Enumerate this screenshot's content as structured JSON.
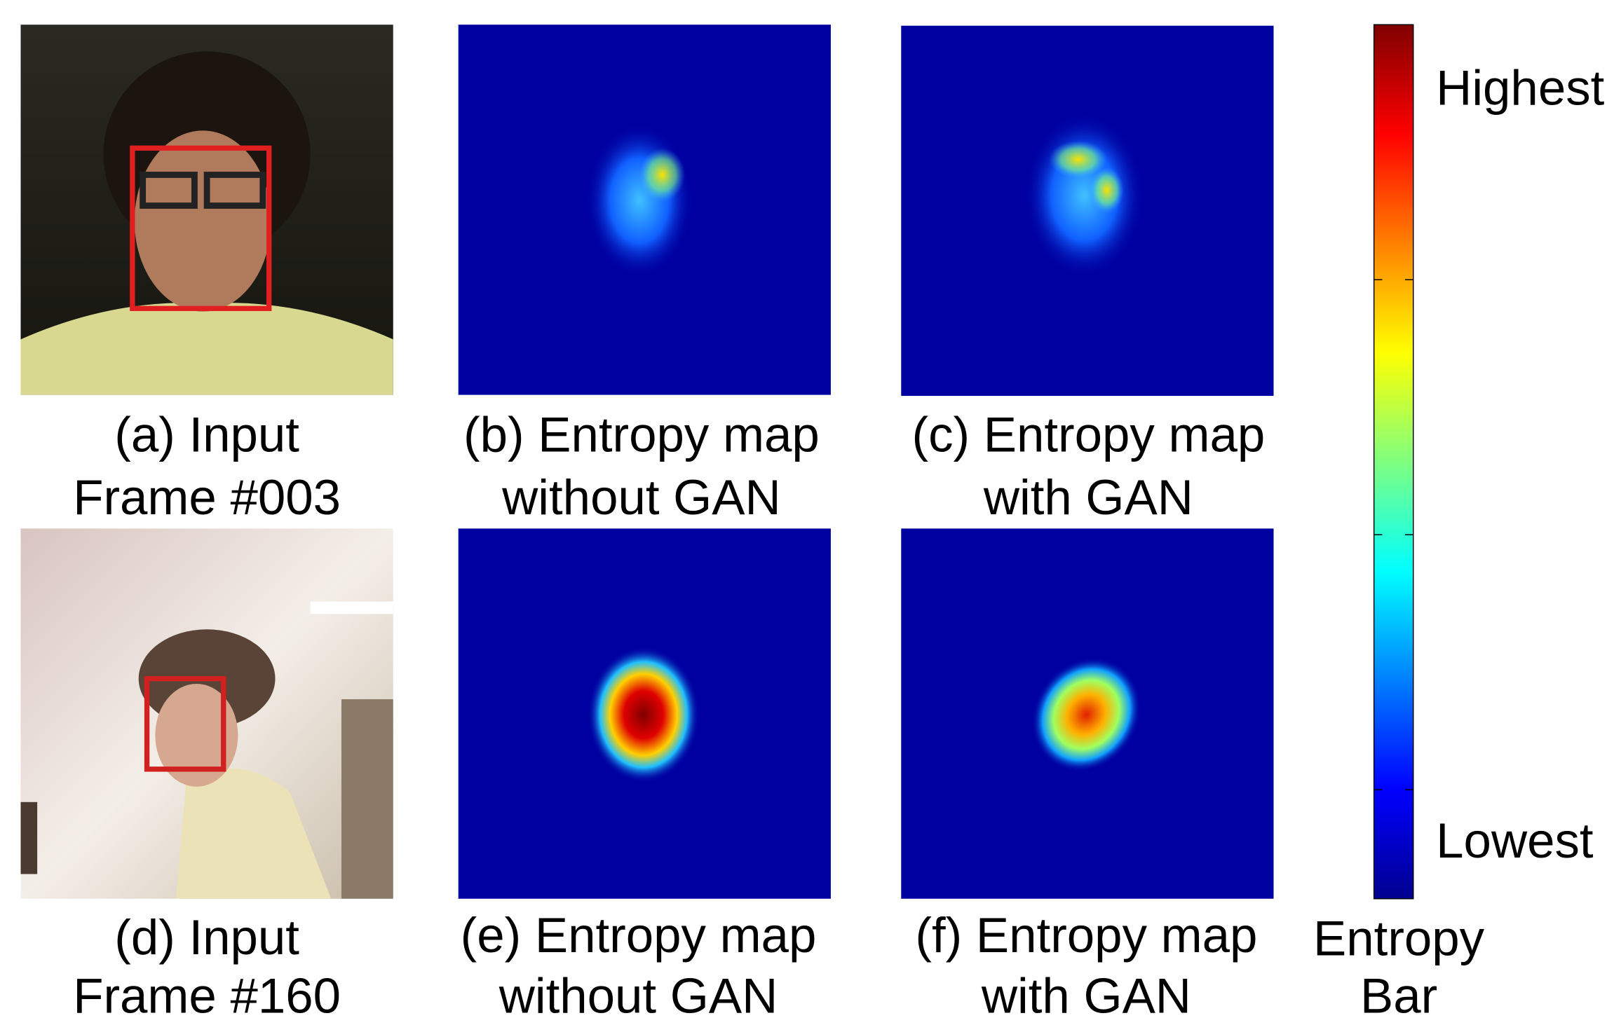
{
  "panels": [
    {
      "caption": [
        "(a)  Input",
        "Frame #003"
      ]
    },
    {
      "caption": [
        "(b) Entropy map",
        "without GAN"
      ]
    },
    {
      "caption": [
        "(c) Entropy map",
        "with GAN"
      ]
    },
    {
      "caption": [
        "(d) Input",
        "Frame #160"
      ]
    },
    {
      "caption": [
        "(e) Entropy map",
        "without GAN"
      ]
    },
    {
      "caption": [
        "(f) Entropy map",
        "with GAN"
      ]
    }
  ],
  "colorbar": {
    "high_label": "Highest",
    "low_label": "Lowest",
    "title": [
      "Entropy",
      "Bar"
    ]
  }
}
